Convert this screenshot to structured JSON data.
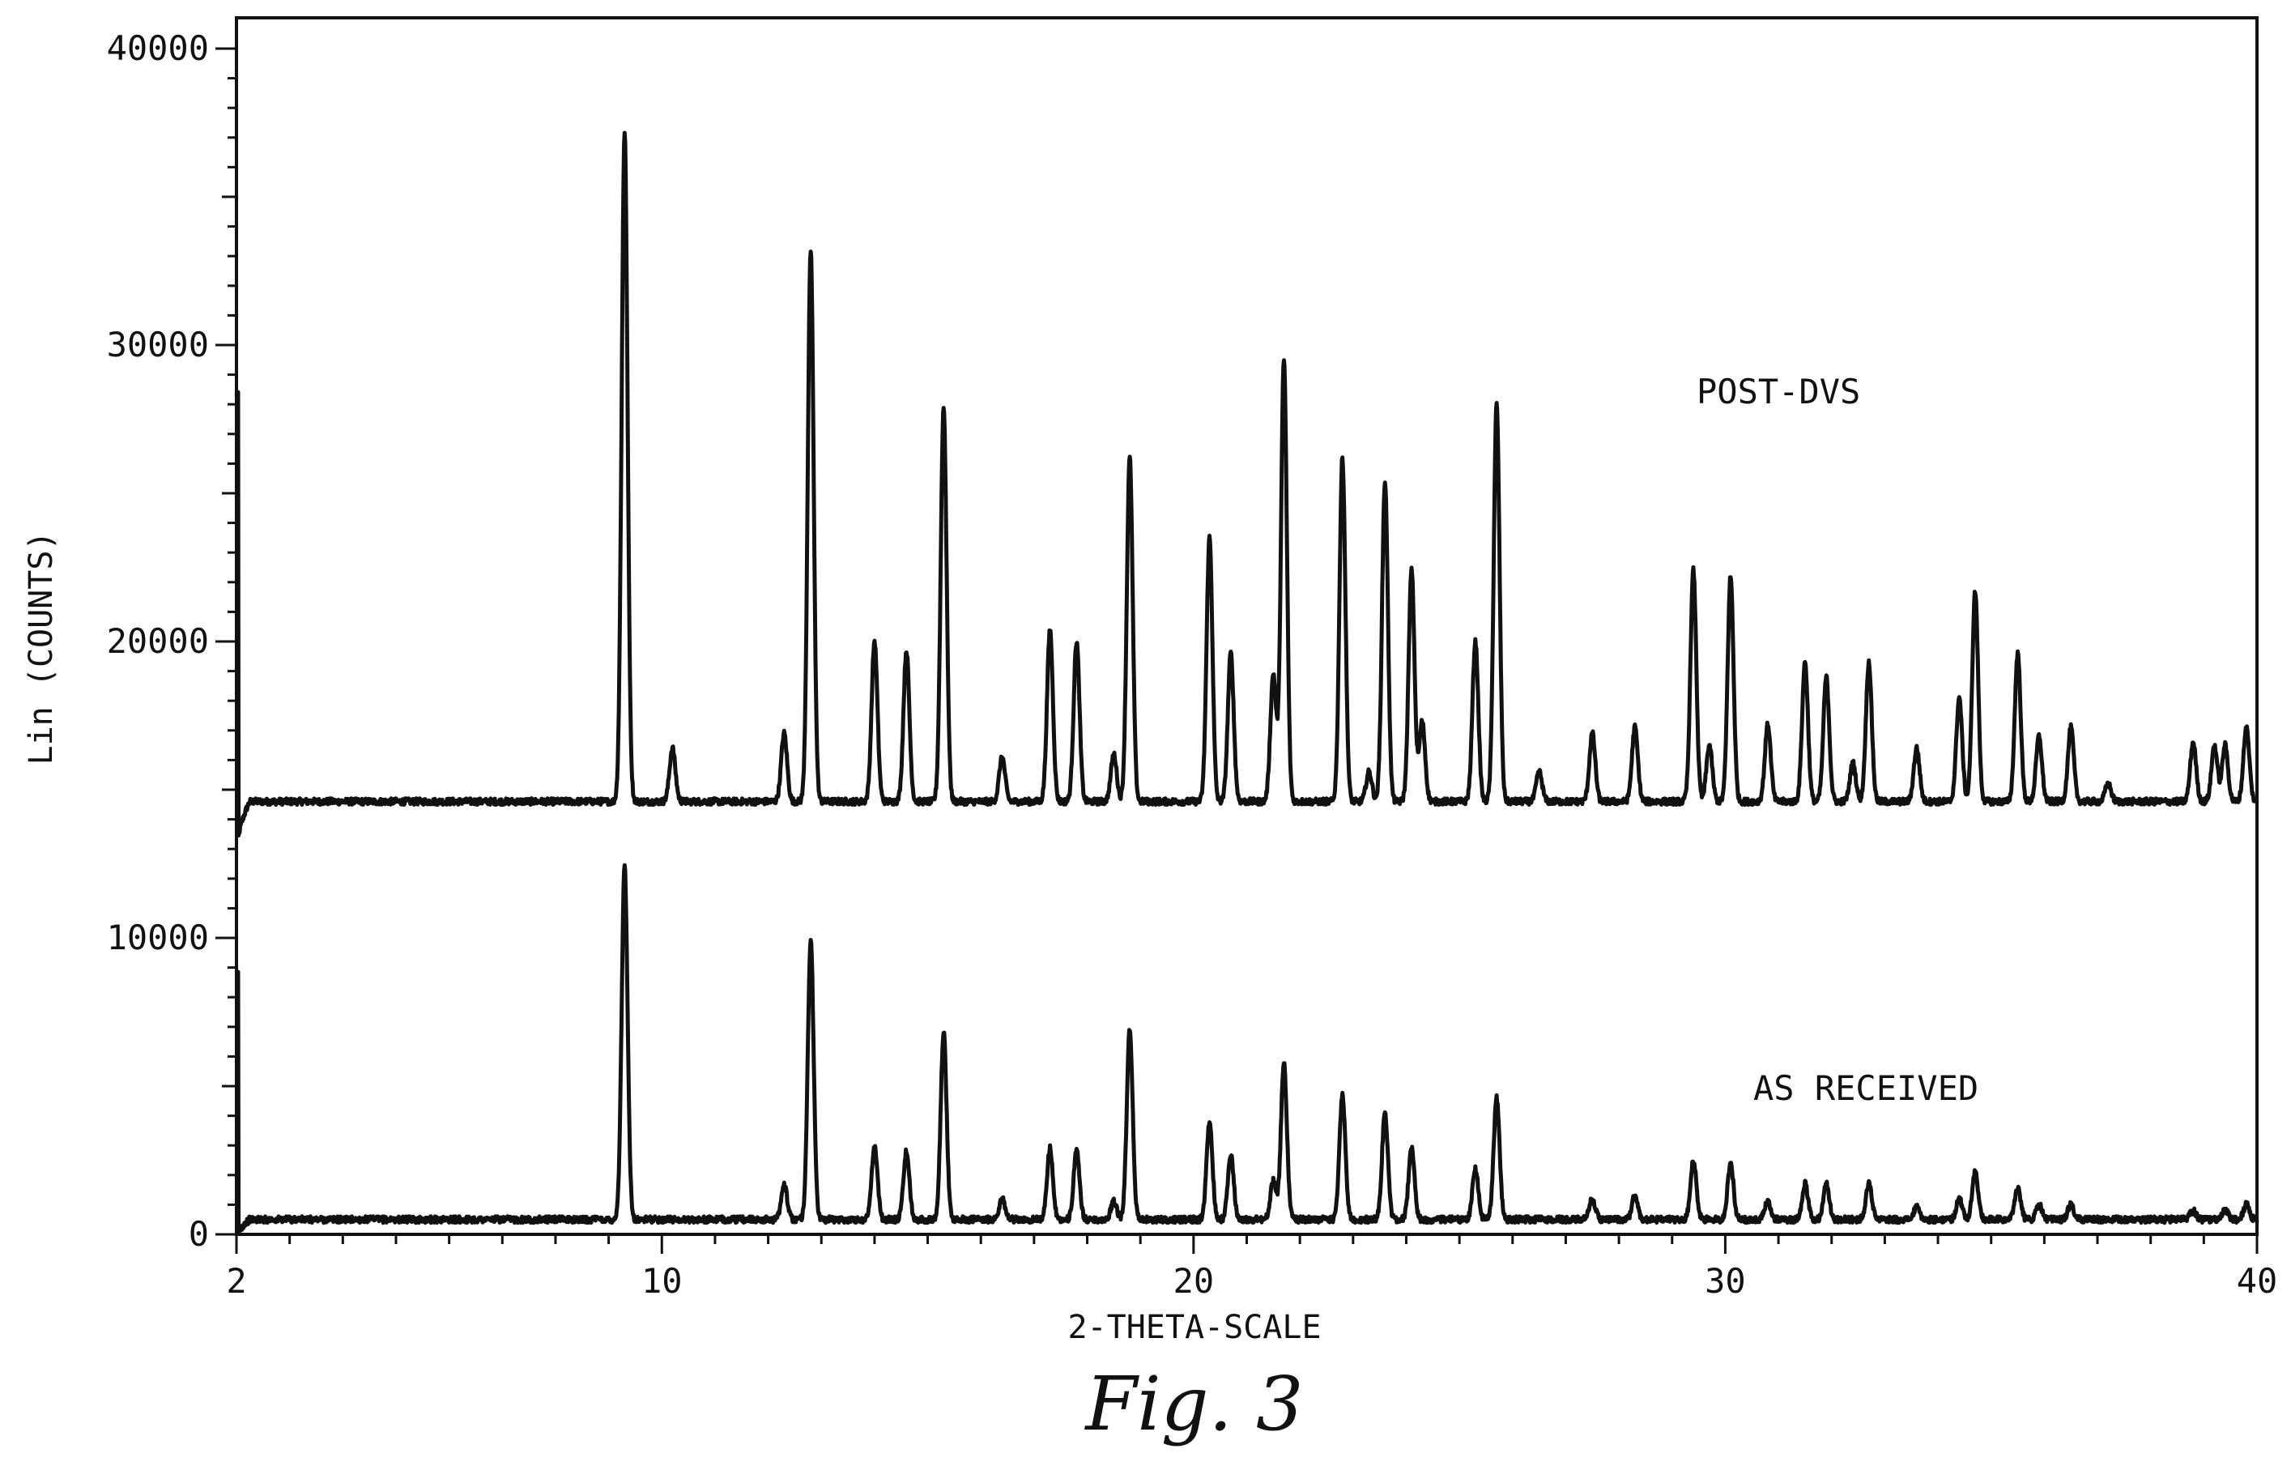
{
  "chart_data": {
    "type": "line",
    "title": "",
    "xlabel": "2-THETA-SCALE",
    "ylabel": "Lin (COUNTS)",
    "xlim": [
      2,
      40
    ],
    "ylim": [
      0,
      40000
    ],
    "x_ticks": [
      2,
      10,
      20,
      30,
      40
    ],
    "x_tick_labels": [
      "2",
      "10",
      "20",
      "30",
      "40"
    ],
    "y_ticks": [
      0,
      10000,
      20000,
      30000,
      40000
    ],
    "y_tick_labels": [
      "0",
      "10000",
      "20000",
      "30000",
      "40000"
    ],
    "grid": false,
    "line_color": "#111111",
    "series": [
      {
        "name": "POST-DVS",
        "baseline": 14600,
        "start_spike": 28300,
        "low_angle_dip": 13200,
        "peaks": [
          [
            9.3,
            37200
          ],
          [
            10.2,
            16400
          ],
          [
            12.3,
            16900
          ],
          [
            12.8,
            33200
          ],
          [
            14.0,
            20000
          ],
          [
            14.6,
            19700
          ],
          [
            15.3,
            27900
          ],
          [
            16.4,
            16100
          ],
          [
            17.3,
            20400
          ],
          [
            17.8,
            20000
          ],
          [
            18.5,
            16200
          ],
          [
            18.8,
            26200
          ],
          [
            20.3,
            23500
          ],
          [
            20.7,
            19600
          ],
          [
            21.5,
            18900
          ],
          [
            21.7,
            29500
          ],
          [
            22.8,
            26200
          ],
          [
            23.3,
            15600
          ],
          [
            23.6,
            25400
          ],
          [
            24.1,
            22400
          ],
          [
            24.3,
            17300
          ],
          [
            25.3,
            20000
          ],
          [
            25.7,
            28000
          ],
          [
            26.5,
            15600
          ],
          [
            27.5,
            16900
          ],
          [
            28.3,
            17100
          ],
          [
            29.4,
            22400
          ],
          [
            29.7,
            16500
          ],
          [
            30.1,
            22200
          ],
          [
            30.8,
            17200
          ],
          [
            31.5,
            19300
          ],
          [
            31.9,
            18800
          ],
          [
            32.4,
            15900
          ],
          [
            32.7,
            19300
          ],
          [
            33.6,
            16400
          ],
          [
            34.4,
            18100
          ],
          [
            34.7,
            21700
          ],
          [
            35.5,
            19600
          ],
          [
            35.9,
            16800
          ],
          [
            36.5,
            17100
          ],
          [
            37.2,
            15200
          ],
          [
            38.8,
            16600
          ],
          [
            39.2,
            16500
          ],
          [
            39.4,
            16500
          ],
          [
            39.8,
            17100
          ]
        ]
      },
      {
        "name": "AS RECEIVED",
        "baseline": 500,
        "start_spike": 8800,
        "low_angle_dip": 0,
        "peaks": [
          [
            9.3,
            12400
          ],
          [
            12.3,
            1700
          ],
          [
            12.8,
            9900
          ],
          [
            14.0,
            3000
          ],
          [
            14.6,
            2800
          ],
          [
            15.3,
            6800
          ],
          [
            16.4,
            1200
          ],
          [
            17.3,
            2900
          ],
          [
            17.8,
            2800
          ],
          [
            18.5,
            1100
          ],
          [
            18.8,
            6900
          ],
          [
            20.3,
            3800
          ],
          [
            20.7,
            2700
          ],
          [
            21.5,
            1800
          ],
          [
            21.7,
            5800
          ],
          [
            22.8,
            4700
          ],
          [
            23.6,
            4100
          ],
          [
            24.1,
            2900
          ],
          [
            25.3,
            2200
          ],
          [
            25.7,
            4600
          ],
          [
            27.5,
            1200
          ],
          [
            28.3,
            1300
          ],
          [
            29.4,
            2500
          ],
          [
            30.1,
            2400
          ],
          [
            30.8,
            1100
          ],
          [
            31.5,
            1700
          ],
          [
            31.9,
            1700
          ],
          [
            32.7,
            1700
          ],
          [
            33.6,
            900
          ],
          [
            34.4,
            1200
          ],
          [
            34.7,
            2100
          ],
          [
            35.5,
            1600
          ],
          [
            35.9,
            1000
          ],
          [
            36.5,
            1000
          ],
          [
            38.8,
            800
          ],
          [
            39.4,
            800
          ],
          [
            39.8,
            1000
          ]
        ]
      }
    ],
    "annotations": [
      "POST-DVS",
      "AS RECEIVED"
    ]
  },
  "figure": {
    "caption": "Fig. 3"
  }
}
